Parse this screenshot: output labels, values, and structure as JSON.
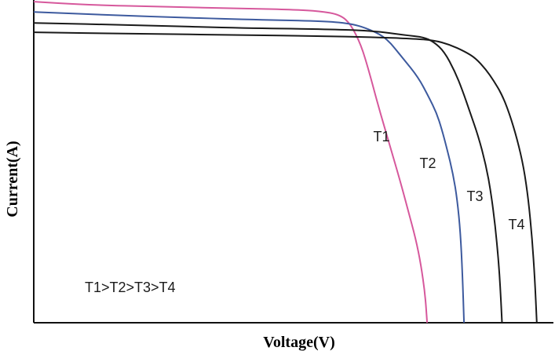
{
  "chart_data": {
    "type": "line",
    "title": "",
    "xlabel": "Voltage(V)",
    "ylabel": "Current(A)",
    "xlim": [
      0,
      100
    ],
    "ylim": [
      0,
      100
    ],
    "grid": false,
    "legend": "none",
    "annotation": "T1>T2>T3>T4",
    "series": [
      {
        "name": "T1",
        "color": "#d6589c",
        "points": [
          [
            0,
            99.5
          ],
          [
            10,
            98.5
          ],
          [
            25,
            97.9
          ],
          [
            40,
            97.4
          ],
          [
            50,
            97.0
          ],
          [
            55,
            96.6
          ],
          [
            59,
            95.4
          ],
          [
            61,
            92.5
          ],
          [
            63,
            86.0
          ],
          [
            64.5,
            78.0
          ],
          [
            66.5,
            66.0
          ],
          [
            68.5,
            55.0
          ],
          [
            70.5,
            44.0
          ],
          [
            72,
            35.0
          ],
          [
            73.5,
            26.0
          ],
          [
            74.5,
            18.0
          ],
          [
            75.3,
            9.0
          ],
          [
            75.7,
            0.0
          ]
        ]
      },
      {
        "name": "T2",
        "color": "#3d5a9e",
        "points": [
          [
            0,
            96.3
          ],
          [
            20,
            95.0
          ],
          [
            40,
            94.0
          ],
          [
            55,
            93.5
          ],
          [
            61,
            92.8
          ],
          [
            65,
            90.7
          ],
          [
            68,
            88.0
          ],
          [
            71,
            82.0
          ],
          [
            74,
            76.0
          ],
          [
            76,
            70.0
          ],
          [
            77.5,
            65.0
          ],
          [
            78.5,
            60.0
          ],
          [
            79.5,
            54.0
          ],
          [
            80.7,
            46.0
          ],
          [
            81.5,
            38.0
          ],
          [
            82.1,
            28.0
          ],
          [
            82.5,
            15.0
          ],
          [
            82.8,
            0.0
          ]
        ]
      },
      {
        "name": "T3",
        "color": "#1a1a1a",
        "points": [
          [
            0,
            92.9
          ],
          [
            20,
            92.2
          ],
          [
            40,
            91.3
          ],
          [
            55,
            91.0
          ],
          [
            65,
            90.5
          ],
          [
            72,
            89.0
          ],
          [
            75,
            88.5
          ],
          [
            77,
            87.0
          ],
          [
            79,
            84.0
          ],
          [
            81,
            78.0
          ],
          [
            82.5,
            72.0
          ],
          [
            84,
            65.0
          ],
          [
            85.5,
            58.0
          ],
          [
            87,
            49.0
          ],
          [
            88,
            40.0
          ],
          [
            88.8,
            30.0
          ],
          [
            89.4,
            20.0
          ],
          [
            89.8,
            10.0
          ],
          [
            90.1,
            0.0
          ]
        ]
      },
      {
        "name": "T4",
        "color": "#1a1a1a",
        "points": [
          [
            0,
            90.0
          ],
          [
            20,
            89.5
          ],
          [
            40,
            89.2
          ],
          [
            55,
            88.8
          ],
          [
            65,
            88.5
          ],
          [
            73,
            88.0
          ],
          [
            77,
            87.5
          ],
          [
            80,
            86.2
          ],
          [
            83,
            84.0
          ],
          [
            85,
            82.0
          ],
          [
            87,
            78.5
          ],
          [
            88.5,
            75.0
          ],
          [
            90,
            71.0
          ],
          [
            91.5,
            65.0
          ],
          [
            93,
            57.0
          ],
          [
            94.3,
            48.0
          ],
          [
            95.2,
            38.0
          ],
          [
            95.9,
            26.0
          ],
          [
            96.4,
            14.0
          ],
          [
            96.8,
            0.0
          ]
        ]
      }
    ]
  }
}
